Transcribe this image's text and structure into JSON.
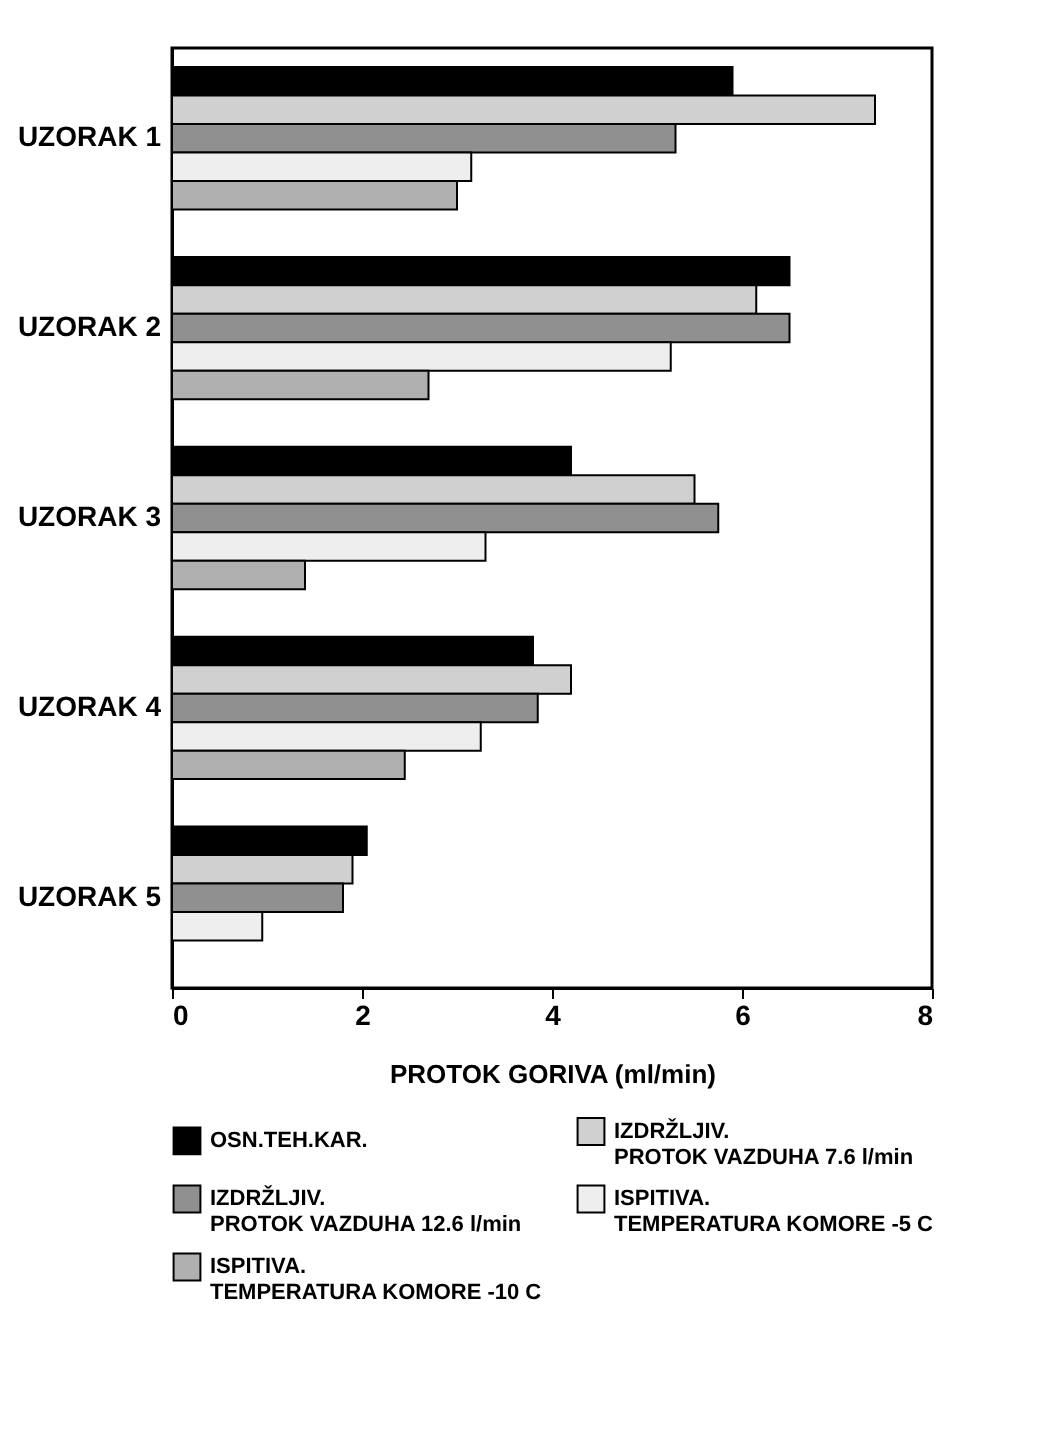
{
  "chart_data": {
    "type": "bar",
    "orientation": "horizontal",
    "xlabel": "PROTOK GORIVA (ml/min)",
    "categories": [
      "UZORAK 1",
      "UZORAK 2",
      "UZORAK 3",
      "UZORAK 4",
      "UZORAK 5"
    ],
    "series": [
      {
        "name": "OSN.TEH.KAR.",
        "color": "#000000",
        "values": [
          5.9,
          6.5,
          4.2,
          3.8,
          2.05
        ]
      },
      {
        "name": "IZDRŽLJIV. PROTOK VAZDUHA 7.6 l/min",
        "color": "#d0d0d0",
        "values": [
          7.4,
          6.15,
          5.5,
          4.2,
          1.9
        ]
      },
      {
        "name": "IZDRŽLJIV. PROTOK VAZDUHA 12.6 l/min",
        "color": "#909090",
        "values": [
          5.3,
          6.5,
          5.75,
          3.85,
          1.8
        ]
      },
      {
        "name": "ISPITIVA. TEMPERATURA KOMORE -5 C",
        "color": "#eeeeee",
        "values": [
          3.15,
          5.25,
          3.3,
          3.25,
          0.95
        ]
      },
      {
        "name": "ISPITIVA. TEMPERATURA KOMORE -10 C",
        "color": "#b0b0b0",
        "values": [
          3.0,
          2.7,
          1.4,
          2.45,
          null
        ]
      }
    ],
    "xlim": [
      0,
      8
    ],
    "xticks": [
      0,
      2,
      4,
      6,
      8
    ],
    "grid": false,
    "legend": "bottom"
  }
}
